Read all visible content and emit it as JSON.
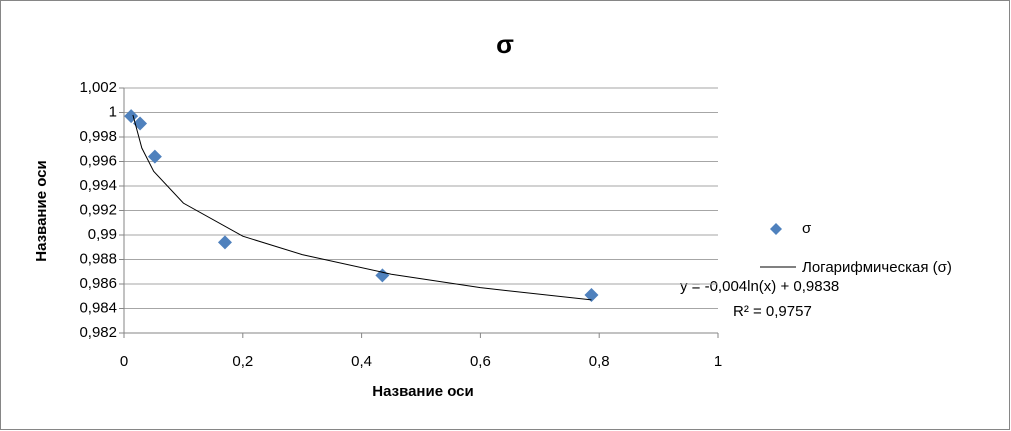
{
  "chart_data": {
    "type": "scatter",
    "title": "σ",
    "x_label": "Название оси",
    "y_label": "Название оси",
    "series": [
      {
        "name": "σ",
        "color": "#4f81bd",
        "x": [
          0.012,
          0.027,
          0.052,
          0.17,
          0.435,
          0.787
        ],
        "values": [
          0.9997,
          0.9991,
          0.9964,
          0.9894,
          0.9867,
          0.9851
        ]
      }
    ],
    "trendline": {
      "name": "Логарифмическая (σ)",
      "color": "#000000",
      "equation": "y = -0,004ln(x) + 0,9838",
      "r_squared": "R² = 0,9757",
      "x": [
        0.015,
        0.03,
        0.05,
        0.1,
        0.2,
        0.3,
        0.45,
        0.6,
        0.787
      ],
      "values": [
        0.9998,
        0.9971,
        0.9952,
        0.9926,
        0.9899,
        0.9884,
        0.9868,
        0.9857,
        0.9847
      ]
    },
    "xlim": [
      0,
      1
    ],
    "xticks": [
      0,
      {
        "value": 0.2,
        "label": "0,2"
      },
      {
        "value": 0.4,
        "label": "0,4"
      },
      {
        "value": 0.6,
        "label": "0,6"
      },
      {
        "value": 0.8,
        "label": "0,8"
      },
      1
    ],
    "ylim": [
      0.982,
      1.002
    ],
    "yticks": [
      {
        "value": 0.982,
        "label": "0,982"
      },
      {
        "value": 0.984,
        "label": "0,984"
      },
      {
        "value": 0.986,
        "label": "0,986"
      },
      {
        "value": 0.988,
        "label": "0,988"
      },
      {
        "value": 0.99,
        "label": "0,99"
      },
      {
        "value": 0.992,
        "label": "0,992"
      },
      {
        "value": 0.994,
        "label": "0,994"
      },
      {
        "value": 0.996,
        "label": "0,996"
      },
      {
        "value": 0.998,
        "label": "0,998"
      },
      1,
      {
        "value": 1.002,
        "label": "1,002"
      }
    ],
    "grid": true
  }
}
